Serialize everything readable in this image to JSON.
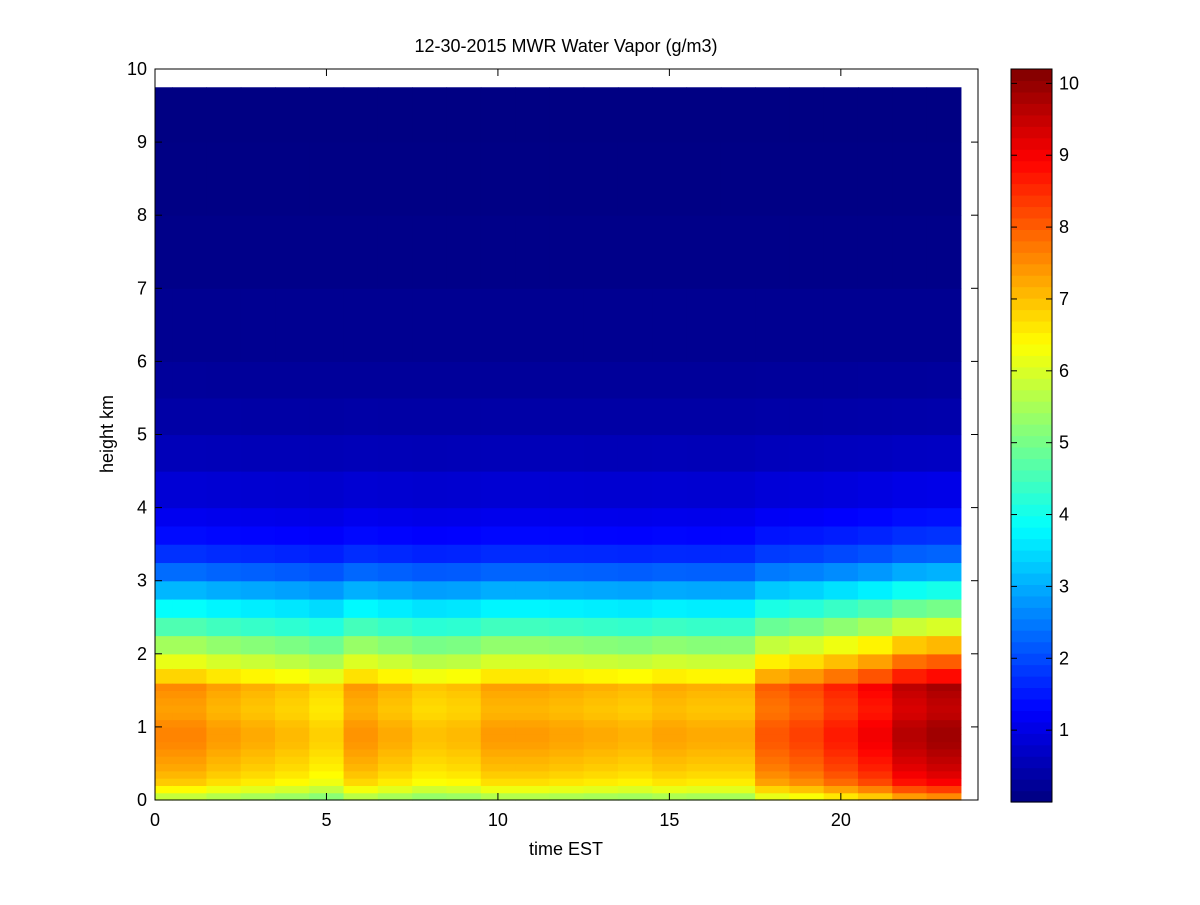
{
  "chart_data": {
    "type": "heatmap",
    "title": "12-30-2015 MWR Water Vapor (g/m3)",
    "xlabel": "time EST",
    "ylabel": "height km",
    "xlim": [
      0,
      24
    ],
    "ylim": [
      0,
      10
    ],
    "x_ticks": [
      "0",
      "5",
      "10",
      "15",
      "20"
    ],
    "y_ticks": [
      "0",
      "1",
      "2",
      "3",
      "4",
      "5",
      "6",
      "7",
      "8",
      "9",
      "10"
    ],
    "colorbar": {
      "colormap": "jet",
      "range": [
        0,
        10.2
      ],
      "ticks": [
        "1",
        "2",
        "3",
        "4",
        "5",
        "6",
        "7",
        "8",
        "9",
        "10"
      ]
    },
    "data_extent": {
      "time_end": 23.5,
      "height_top": 9.75
    },
    "columns_time": [
      0,
      1,
      2,
      3,
      4,
      5,
      6,
      7,
      8,
      9,
      10,
      11,
      12,
      13,
      14,
      15,
      16,
      17,
      18,
      19,
      20,
      21,
      22,
      23
    ],
    "heights_km": [
      0,
      0.1,
      0.2,
      0.3,
      0.4,
      0.5,
      0.6,
      0.7,
      0.8,
      0.9,
      1.0,
      1.1,
      1.2,
      1.3,
      1.4,
      1.5,
      1.6,
      1.8,
      2.0,
      2.25,
      2.5,
      2.75,
      3.0,
      3.25,
      3.5,
      3.75,
      4.0,
      4.5,
      5.0,
      5.5,
      6.0,
      7.0,
      8.0,
      9.0
    ],
    "profile_scale": {
      "time": [
        0,
        1,
        2,
        3,
        4,
        5,
        6,
        7,
        8,
        9,
        10,
        11,
        12,
        13,
        14,
        15,
        16,
        17,
        18,
        19,
        20,
        21,
        22,
        23
      ],
      "values": [
        1.0,
        1.0,
        0.97,
        0.95,
        0.93,
        0.9,
        0.98,
        0.95,
        0.92,
        0.93,
        0.97,
        0.97,
        0.96,
        0.95,
        0.94,
        0.96,
        0.95,
        0.95,
        1.06,
        1.09,
        1.14,
        1.19,
        1.27,
        1.3
      ]
    },
    "base_profile": {
      "height_km": [
        0,
        0.1,
        0.2,
        0.4,
        0.6,
        0.8,
        1.0,
        1.2,
        1.4,
        1.6,
        1.7,
        1.8,
        2.0,
        2.25,
        2.5,
        2.75,
        3.0,
        3.25,
        3.5,
        4.0,
        4.5,
        5.0,
        5.5,
        6.0,
        7.0,
        8.0,
        9.0,
        9.75
      ],
      "value": [
        5.6,
        6.0,
        6.8,
        7.2,
        7.4,
        7.6,
        7.6,
        7.3,
        7.4,
        7.6,
        6.8,
        6.4,
        5.9,
        5.0,
        4.2,
        3.5,
        2.7,
        2.0,
        1.5,
        1.0,
        0.7,
        0.45,
        0.32,
        0.22,
        0.12,
        0.07,
        0.04,
        0.03
      ]
    }
  }
}
